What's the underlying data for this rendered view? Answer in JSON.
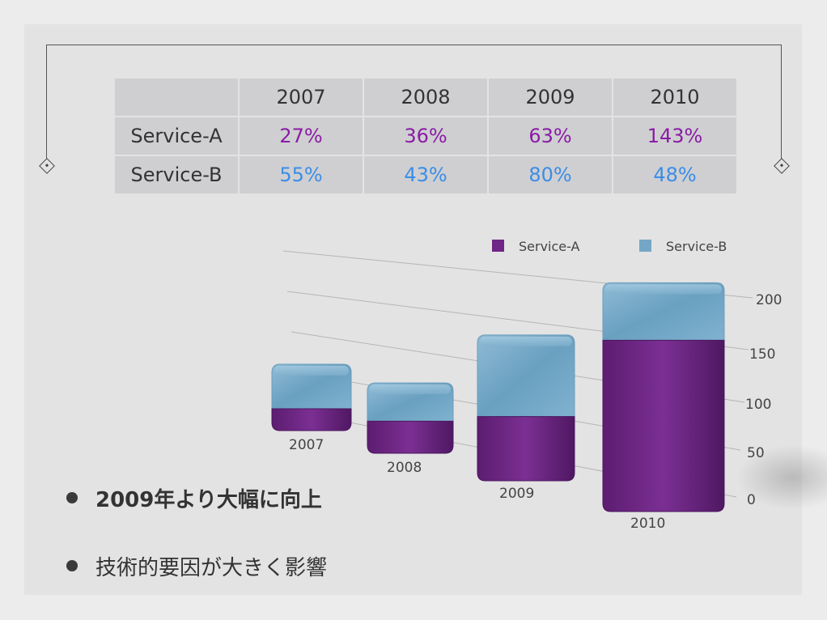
{
  "table": {
    "header": [
      "",
      "2007",
      "2008",
      "2009",
      "2010"
    ],
    "rows": [
      {
        "label": "Service-A",
        "values": [
          "27%",
          "36%",
          "63%",
          "143%"
        ]
      },
      {
        "label": "Service-B",
        "values": [
          "55%",
          "43%",
          "80%",
          "48%"
        ]
      }
    ]
  },
  "bullets": [
    {
      "text": "2009年より大幅に向上",
      "bold": true
    },
    {
      "text": "技術的要因が大きく影響",
      "bold": false
    }
  ],
  "colors": {
    "service_a": "#6f2585",
    "service_b": "#74a7c6",
    "text_a": "#8a1ca6",
    "text_b": "#3b8de8"
  },
  "chart_data": {
    "type": "bar",
    "stacked": true,
    "categories": [
      "2007",
      "2008",
      "2009",
      "2010"
    ],
    "series": [
      {
        "name": "Service-A",
        "values": [
          27,
          36,
          63,
          143
        ]
      },
      {
        "name": "Service-B",
        "values": [
          55,
          43,
          80,
          48
        ]
      }
    ],
    "y_ticks": [
      "0",
      "50",
      "100",
      "150",
      "200"
    ],
    "ylim": [
      0,
      200
    ],
    "legend": "top-right",
    "grid": true
  }
}
